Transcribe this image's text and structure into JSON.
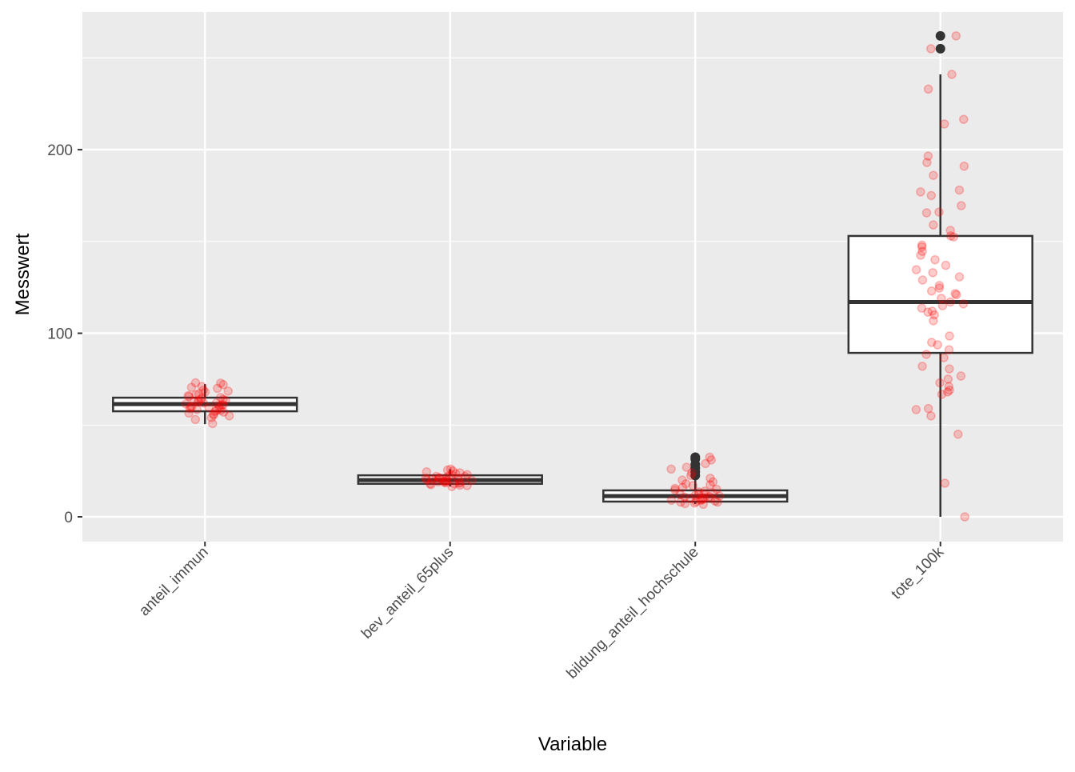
{
  "chart_data": {
    "type": "boxplot",
    "title": "",
    "xlabel": "Variable",
    "ylabel": "Messwert",
    "ylim": [
      -13.5,
      275
    ],
    "yticks": [
      0,
      100,
      200
    ],
    "yminor": [
      50,
      150,
      250
    ],
    "grid": true,
    "categories": [
      "anteil_immun",
      "bev_anteil_65plus",
      "bildung_anteil_hochschule",
      "tote_100k"
    ],
    "boxes": [
      {
        "name": "anteil_immun",
        "whisker_low": 50.5,
        "q1": 57.5,
        "median": 61.4,
        "q3": 64.9,
        "whisker_high": 72.3,
        "outliers": []
      },
      {
        "name": "bev_anteil_65plus",
        "whisker_low": 16.5,
        "q1": 18.0,
        "median": 20.0,
        "q3": 22.6,
        "whisker_high": 26.0,
        "outliers": []
      },
      {
        "name": "bildung_anteil_hochschule",
        "whisker_low": 7.0,
        "q1": 8.3,
        "median": 11.3,
        "q3": 14.4,
        "whisker_high": 20.0,
        "outliers": [
          22.5,
          24.5,
          26.5,
          28.5,
          31.5,
          32.5
        ]
      },
      {
        "name": "tote_100k",
        "whisker_low": 0,
        "q1": 89.3,
        "median": 117,
        "q3": 153,
        "whisker_high": 241,
        "outliers": [
          255,
          262
        ]
      }
    ],
    "points": [
      [
        50.8,
        53,
        54,
        55,
        55.5,
        56,
        56.5,
        57,
        57.5,
        58,
        58,
        58.5,
        59,
        59,
        59.5,
        60,
        60,
        60.5,
        61,
        61,
        61.5,
        62,
        62,
        62.5,
        63,
        63,
        63.5,
        64,
        64,
        64.5,
        65,
        65.5,
        66,
        66.5,
        67,
        68,
        68.5,
        69,
        70,
        70.5,
        71,
        72,
        72.8,
        73
      ],
      [
        16.5,
        17,
        17.2,
        17.5,
        18,
        18,
        18.3,
        18.5,
        18.8,
        19,
        19,
        19.2,
        19.5,
        19.8,
        20,
        20,
        20.2,
        20.5,
        20.8,
        21,
        21,
        21.3,
        21.5,
        22,
        22,
        22.4,
        22.8,
        23,
        23.5,
        24,
        24.5,
        25,
        25.5,
        26
      ],
      [
        6.8,
        7.2,
        7.5,
        8,
        8,
        8.3,
        8.6,
        9,
        9,
        9.3,
        9.6,
        10,
        10,
        10.4,
        10.8,
        11,
        11.3,
        11.6,
        12,
        12,
        12.5,
        13,
        13.5,
        14,
        14.5,
        15,
        15.5,
        16,
        17,
        17.5,
        18,
        19,
        20,
        21,
        22.5,
        24,
        26,
        27,
        29,
        31,
        32.5
      ],
      [
        0,
        18.3,
        45,
        55,
        58.4,
        59,
        66.7,
        68,
        69,
        71,
        73,
        75,
        76.7,
        80.6,
        82,
        86.7,
        88.5,
        91,
        93.7,
        95,
        98.5,
        106.8,
        110,
        111.5,
        112,
        113.7,
        115,
        116,
        117,
        119,
        121,
        121.6,
        123,
        124.6,
        126,
        129,
        130.7,
        133,
        134.6,
        137,
        140,
        142.5,
        144.6,
        147,
        148,
        152.5,
        153,
        156,
        159,
        165.6,
        166,
        169.5,
        175,
        177,
        178,
        186,
        191,
        193,
        196.5,
        214,
        216.5,
        233,
        241,
        255,
        262
      ]
    ],
    "point_color": "#ff0000",
    "box_line_color": "#333333",
    "panel_background": "#ebebeb"
  }
}
